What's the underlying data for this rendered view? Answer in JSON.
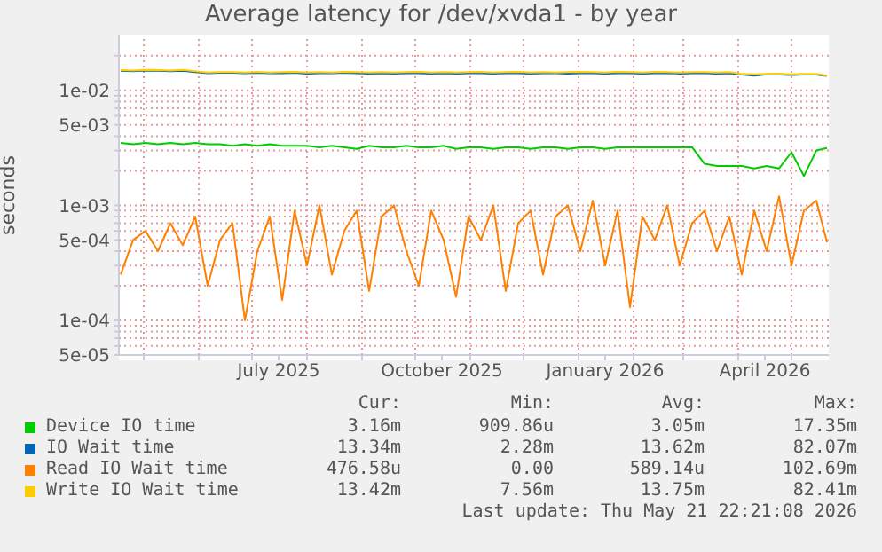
{
  "chart_data": {
    "type": "line",
    "title": "Average latency for /dev/xvda1 - by year",
    "ylabel": "seconds",
    "log": "y",
    "grid": true,
    "legend": "bottom",
    "marker": "none",
    "line_style": "solid",
    "x": [
      "2025-04-18",
      "2025-04-25",
      "2025-05-02",
      "2025-05-09",
      "2025-05-16",
      "2025-05-23",
      "2025-05-30",
      "2025-06-06",
      "2025-06-13",
      "2025-06-20",
      "2025-06-27",
      "2025-07-04",
      "2025-07-11",
      "2025-07-18",
      "2025-07-25",
      "2025-08-01",
      "2025-08-08",
      "2025-08-15",
      "2025-08-22",
      "2025-08-29",
      "2025-09-05",
      "2025-09-12",
      "2025-09-19",
      "2025-09-26",
      "2025-10-03",
      "2025-10-10",
      "2025-10-17",
      "2025-10-24",
      "2025-10-31",
      "2025-11-07",
      "2025-11-14",
      "2025-11-21",
      "2025-11-28",
      "2025-12-05",
      "2025-12-12",
      "2025-12-19",
      "2025-12-26",
      "2026-01-02",
      "2026-01-09",
      "2026-01-16",
      "2026-01-23",
      "2026-01-30",
      "2026-02-06",
      "2026-02-13",
      "2026-02-20",
      "2026-02-27",
      "2026-03-06",
      "2026-03-13",
      "2026-03-20",
      "2026-03-27",
      "2026-04-03",
      "2026-04-10",
      "2026-04-17",
      "2026-04-24",
      "2026-05-01",
      "2026-05-08",
      "2026-05-15",
      "2026-05-21"
    ],
    "xlim": [
      "2025-04-17",
      "2026-05-22"
    ],
    "xticks": [
      {
        "value": "2025-05-01",
        "label": null
      },
      {
        "value": "2025-06-01",
        "label": null
      },
      {
        "value": "2025-07-01",
        "label": null
      },
      {
        "value": "2025-07-16",
        "label": "July 2025"
      },
      {
        "value": "2025-08-01",
        "label": null
      },
      {
        "value": "2025-09-01",
        "label": null
      },
      {
        "value": "2025-10-01",
        "label": null
      },
      {
        "value": "2025-10-16",
        "label": "October 2025"
      },
      {
        "value": "2025-11-01",
        "label": null
      },
      {
        "value": "2025-12-01",
        "label": null
      },
      {
        "value": "2026-01-01",
        "label": null
      },
      {
        "value": "2026-01-16",
        "label": "January 2026"
      },
      {
        "value": "2026-02-01",
        "label": null
      },
      {
        "value": "2026-03-01",
        "label": null
      },
      {
        "value": "2026-04-01",
        "label": null
      },
      {
        "value": "2026-04-16",
        "label": "April 2026"
      },
      {
        "value": "2026-05-01",
        "label": null
      }
    ],
    "ylim": [
      5e-05,
      0.03
    ],
    "yticks": [
      {
        "value": 5e-05,
        "label": "5e-05"
      },
      {
        "value": 6e-05,
        "label": null
      },
      {
        "value": 7e-05,
        "label": null
      },
      {
        "value": 8e-05,
        "label": null
      },
      {
        "value": 9e-05,
        "label": null
      },
      {
        "value": 0.0001,
        "label": "1e-04"
      },
      {
        "value": 0.0002,
        "label": null
      },
      {
        "value": 0.0003,
        "label": null
      },
      {
        "value": 0.0004,
        "label": null
      },
      {
        "value": 0.0005,
        "label": "5e-04"
      },
      {
        "value": 0.0006,
        "label": null
      },
      {
        "value": 0.0007,
        "label": null
      },
      {
        "value": 0.0008,
        "label": null
      },
      {
        "value": 0.0009,
        "label": null
      },
      {
        "value": 0.001,
        "label": "1e-03"
      },
      {
        "value": 0.002,
        "label": null
      },
      {
        "value": 0.003,
        "label": null
      },
      {
        "value": 0.004,
        "label": null
      },
      {
        "value": 0.005,
        "label": "5e-03"
      },
      {
        "value": 0.006,
        "label": null
      },
      {
        "value": 0.007,
        "label": null
      },
      {
        "value": 0.008,
        "label": null
      },
      {
        "value": 0.009,
        "label": null
      },
      {
        "value": 0.01,
        "label": "1e-02"
      },
      {
        "value": 0.02,
        "label": null
      }
    ],
    "series": [
      {
        "name": "Device IO time",
        "color": "#00cc00",
        "values": [
          0.0035,
          0.0034,
          0.0035,
          0.0034,
          0.0035,
          0.0034,
          0.0035,
          0.0034,
          0.0034,
          0.0033,
          0.0034,
          0.0033,
          0.0034,
          0.0033,
          0.0033,
          0.0033,
          0.0032,
          0.0033,
          0.0032,
          0.0031,
          0.0033,
          0.0032,
          0.0032,
          0.0033,
          0.0032,
          0.0032,
          0.0033,
          0.0031,
          0.0032,
          0.0032,
          0.0031,
          0.0032,
          0.0032,
          0.0031,
          0.0032,
          0.0032,
          0.0031,
          0.0032,
          0.0032,
          0.0031,
          0.0032,
          0.0032,
          0.0032,
          0.0032,
          0.0032,
          0.0032,
          0.0032,
          0.0023,
          0.0022,
          0.0022,
          0.0022,
          0.0021,
          0.0022,
          0.0021,
          0.0029,
          0.0018,
          0.003,
          0.00316
        ]
      },
      {
        "name": "IO Wait time",
        "color": "#0066b3",
        "values": [
          0.0148,
          0.0147,
          0.0149,
          0.0148,
          0.0147,
          0.0148,
          0.0144,
          0.0141,
          0.0142,
          0.0142,
          0.0141,
          0.0142,
          0.0141,
          0.0141,
          0.0142,
          0.014,
          0.0141,
          0.0141,
          0.0142,
          0.0141,
          0.014,
          0.0141,
          0.014,
          0.0141,
          0.0141,
          0.014,
          0.0141,
          0.014,
          0.0141,
          0.0141,
          0.014,
          0.0141,
          0.0141,
          0.014,
          0.0141,
          0.0141,
          0.014,
          0.0141,
          0.0141,
          0.014,
          0.0141,
          0.0141,
          0.014,
          0.0141,
          0.0141,
          0.014,
          0.0141,
          0.0141,
          0.014,
          0.0141,
          0.0137,
          0.0134,
          0.0138,
          0.0137,
          0.0136,
          0.0137,
          0.0137,
          0.01334
        ]
      },
      {
        "name": "Read IO Wait time",
        "color": "#ff8000",
        "values": [
          0.00025,
          0.0005,
          0.0006,
          0.0004,
          0.0007,
          0.00045,
          0.0008,
          0.0002,
          0.0005,
          0.0007,
          0.0001,
          0.0004,
          0.0008,
          0.00015,
          0.0009,
          0.0003,
          0.001,
          0.00025,
          0.0006,
          0.0009,
          0.00018,
          0.0008,
          0.001,
          0.0004,
          0.0002,
          0.0009,
          0.0005,
          0.00016,
          0.0008,
          0.0005,
          0.001,
          0.00018,
          0.0007,
          0.0009,
          0.00025,
          0.0008,
          0.001,
          0.0004,
          0.0011,
          0.0003,
          0.0009,
          0.00013,
          0.0008,
          0.0005,
          0.001,
          0.0003,
          0.0007,
          0.0009,
          0.0004,
          0.0008,
          0.00025,
          0.0009,
          0.0004,
          0.0012,
          0.0003,
          0.0009,
          0.0011,
          0.000477
        ]
      },
      {
        "name": "Write IO Wait time",
        "color": "#ffcc00",
        "values": [
          0.015,
          0.0149,
          0.0151,
          0.015,
          0.0149,
          0.0151,
          0.0147,
          0.0143,
          0.0144,
          0.0144,
          0.0143,
          0.0145,
          0.0143,
          0.0144,
          0.0145,
          0.0143,
          0.0144,
          0.0143,
          0.0145,
          0.0144,
          0.0143,
          0.0144,
          0.0143,
          0.0144,
          0.0145,
          0.0143,
          0.0144,
          0.0143,
          0.0144,
          0.0145,
          0.0143,
          0.0144,
          0.0145,
          0.0143,
          0.0144,
          0.0143,
          0.0144,
          0.0145,
          0.0144,
          0.0143,
          0.0145,
          0.0144,
          0.0143,
          0.0145,
          0.0144,
          0.0143,
          0.0144,
          0.0144,
          0.0143,
          0.0144,
          0.0139,
          0.0138,
          0.0139,
          0.014,
          0.0138,
          0.0139,
          0.0139,
          0.01342
        ]
      }
    ],
    "annotations": [
      "Cur:",
      "Min:",
      "Avg:",
      "Max:",
      "3.16m",
      "909.86u",
      "3.05m",
      "17.35m",
      "13.34m",
      "2.28m",
      "13.62m",
      "82.07m",
      "476.58u",
      "0.00",
      "589.14u",
      "102.69m",
      "13.42m",
      "7.56m",
      "13.75m",
      "82.41m",
      "Last update: Thu May 21 22:21:08 2026"
    ]
  }
}
